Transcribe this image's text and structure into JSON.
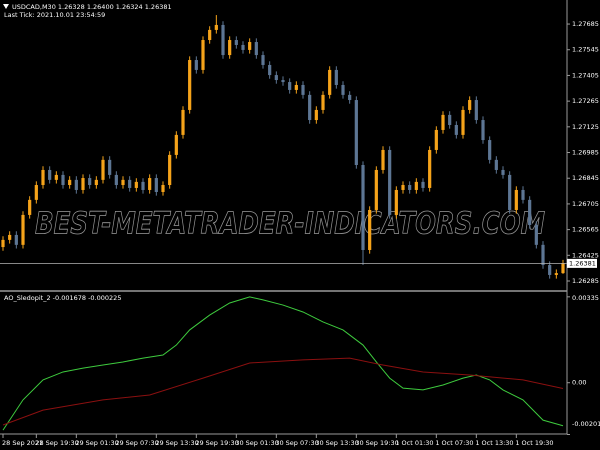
{
  "chart_data": [
    {
      "type": "candlestick",
      "title": "USDCAD,M30  1.26328 1.26400 1.26324 1.26381",
      "subtitle": "Last Tick: 2021.10.01 23:54:59",
      "watermark": "BEST-METATRADER-INDICATORS.COM",
      "up_color": "#f5a31a",
      "down_color": "#5d7694",
      "open": [
        1.2647,
        1.26509,
        1.26536,
        1.26482,
        1.26645,
        1.26727,
        1.26808,
        1.2689,
        1.26836,
        1.26863,
        1.26808,
        1.26836,
        1.26781,
        1.26846,
        1.26808,
        1.26836,
        1.26945,
        1.26863,
        1.26808,
        1.26836,
        1.26792,
        1.26825,
        1.26781,
        1.26846,
        1.2677,
        1.26808,
        1.26972,
        1.27081,
        1.27217,
        1.27489,
        1.27435,
        1.27598,
        1.27653,
        1.2768,
        1.27516,
        1.27598,
        1.27571,
        1.27544,
        1.27587,
        1.27516,
        1.27462,
        1.27407,
        1.2738,
        1.27369,
        1.27326,
        1.27353,
        1.27299,
        1.27162,
        1.27217,
        1.27299,
        1.27435,
        1.27353,
        1.27299,
        1.27271,
        1.26917,
        1.26454,
        1.26672,
        1.2689,
        1.26999,
        1.26645,
        1.26781,
        1.26808,
        1.26781,
        1.26825,
        1.26792,
        1.26999,
        1.27108,
        1.2719,
        1.27135,
        1.27081,
        1.27217,
        1.27271,
        1.27162,
        1.27053,
        1.26945,
        1.2689,
        1.26863,
        1.26672,
        1.26781,
        1.26727,
        1.2659,
        1.26482,
        1.26372,
        1.26318,
        1.26328
      ],
      "high": [
        1.26529,
        1.26556,
        1.26556,
        1.26665,
        1.26747,
        1.26828,
        1.2691,
        1.2691,
        1.26883,
        1.26883,
        1.26856,
        1.26856,
        1.26866,
        1.26866,
        1.26856,
        1.26965,
        1.26965,
        1.26883,
        1.26856,
        1.26856,
        1.26845,
        1.26845,
        1.26866,
        1.26866,
        1.26828,
        1.26992,
        1.27101,
        1.27237,
        1.27509,
        1.27509,
        1.27618,
        1.27673,
        1.27734,
        1.277,
        1.27618,
        1.27618,
        1.27591,
        1.27607,
        1.27607,
        1.27536,
        1.27482,
        1.27427,
        1.274,
        1.27389,
        1.27373,
        1.27373,
        1.27319,
        1.27237,
        1.27319,
        1.27455,
        1.27455,
        1.27373,
        1.27319,
        1.27291,
        1.26937,
        1.26692,
        1.2691,
        1.27019,
        1.27019,
        1.26801,
        1.26828,
        1.26828,
        1.26845,
        1.26845,
        1.27019,
        1.27128,
        1.2721,
        1.2721,
        1.27155,
        1.27237,
        1.27291,
        1.27291,
        1.27182,
        1.27073,
        1.26965,
        1.2691,
        1.26883,
        1.26801,
        1.26801,
        1.26747,
        1.2661,
        1.26502,
        1.26392,
        1.26348,
        1.264
      ],
      "low": [
        1.2645,
        1.26489,
        1.26462,
        1.26462,
        1.26625,
        1.26707,
        1.26788,
        1.26816,
        1.26816,
        1.26788,
        1.26788,
        1.26761,
        1.26761,
        1.26788,
        1.26788,
        1.26816,
        1.26843,
        1.26788,
        1.26788,
        1.26772,
        1.26772,
        1.26761,
        1.26761,
        1.2675,
        1.2675,
        1.26788,
        1.26952,
        1.27061,
        1.27197,
        1.27415,
        1.27415,
        1.27578,
        1.27633,
        1.27496,
        1.27496,
        1.27551,
        1.27524,
        1.27524,
        1.27496,
        1.27442,
        1.27387,
        1.2736,
        1.27349,
        1.27306,
        1.27306,
        1.27279,
        1.27142,
        1.27142,
        1.27197,
        1.27279,
        1.27333,
        1.27279,
        1.27251,
        1.26897,
        1.26372,
        1.26434,
        1.26652,
        1.2687,
        1.26625,
        1.26625,
        1.26761,
        1.26761,
        1.26761,
        1.26772,
        1.26772,
        1.26979,
        1.27088,
        1.27115,
        1.27061,
        1.27061,
        1.27197,
        1.27142,
        1.27033,
        1.26925,
        1.2687,
        1.26843,
        1.26652,
        1.26652,
        1.26707,
        1.2657,
        1.26462,
        1.26352,
        1.26298,
        1.26298,
        1.26324
      ],
      "close": [
        1.26509,
        1.26536,
        1.26482,
        1.26645,
        1.26727,
        1.26808,
        1.2689,
        1.26836,
        1.26863,
        1.26808,
        1.26836,
        1.26781,
        1.26846,
        1.26808,
        1.26836,
        1.26945,
        1.26863,
        1.26808,
        1.26836,
        1.26792,
        1.26825,
        1.26781,
        1.26846,
        1.2677,
        1.26808,
        1.26972,
        1.27081,
        1.27217,
        1.27489,
        1.27435,
        1.27598,
        1.27653,
        1.2768,
        1.27516,
        1.27598,
        1.27571,
        1.27544,
        1.27587,
        1.27516,
        1.27462,
        1.27407,
        1.2738,
        1.27369,
        1.27326,
        1.27353,
        1.27299,
        1.27162,
        1.27217,
        1.27299,
        1.27435,
        1.27353,
        1.27299,
        1.27271,
        1.26917,
        1.26454,
        1.26672,
        1.2689,
        1.26999,
        1.26645,
        1.26781,
        1.26808,
        1.26781,
        1.26825,
        1.26792,
        1.26999,
        1.27108,
        1.2719,
        1.27135,
        1.27081,
        1.27217,
        1.27271,
        1.27162,
        1.27053,
        1.26945,
        1.2689,
        1.26863,
        1.26672,
        1.26781,
        1.26727,
        1.2659,
        1.26482,
        1.26372,
        1.26318,
        1.26328,
        1.26381
      ],
      "xlim": [
        -0.45,
        84.45
      ],
      "xticks": [
        {
          "value": 0,
          "label": "28 Sep 2021"
        },
        {
          "value": 5,
          "label": "28 Sep 19:30"
        },
        {
          "value": 11,
          "label": "29 Sep 01:30"
        },
        {
          "value": 17,
          "label": "29 Sep 07:30"
        },
        {
          "value": 23,
          "label": "29 Sep 13:30"
        },
        {
          "value": 29,
          "label": "29 Sep 19:30"
        },
        {
          "value": 35,
          "label": "30 Sep 01:30"
        },
        {
          "value": 41,
          "label": "30 Sep 07:30"
        },
        {
          "value": 47,
          "label": "30 Sep 13:30"
        },
        {
          "value": 53,
          "label": "30 Sep 19:30"
        },
        {
          "value": 59,
          "label": "1 Oct 01:30"
        },
        {
          "value": 65,
          "label": "1 Oct 07:30"
        },
        {
          "value": 71,
          "label": "1 Oct 13:30"
        },
        {
          "value": 77,
          "label": "1 Oct 19:30"
        }
      ],
      "ylim": [
        1.26236,
        1.27816
      ],
      "yticks": [
        1.27685,
        1.27545,
        1.27405,
        1.27265,
        1.27125,
        1.26985,
        1.26845,
        1.26705,
        1.26565,
        1.26425,
        1.26285
      ],
      "current_price": 1.26381
    },
    {
      "type": "line",
      "title": "AO_Sledopit_2 -0.001678 -0.000225",
      "xlim": [
        -0.45,
        84.45
      ],
      "ylim": [
        -0.002,
        0.0035
      ],
      "yticks": [
        0.00335,
        {
          "value": 0,
          "label": "0.00"
        },
        -0.002019
      ],
      "series": [
        {
          "color": "#3ecb3e",
          "x": [
            0,
            3,
            6,
            9,
            12,
            15,
            18,
            21,
            24,
            26,
            28,
            31,
            34,
            37,
            39,
            42,
            45,
            48,
            51,
            54,
            56,
            58,
            60,
            63,
            66,
            69,
            71,
            73,
            75,
            78,
            81,
            84
          ],
          "values": [
            -0.00185,
            -0.00067,
            0.00011,
            0.00042,
            0.00057,
            0.00069,
            0.00081,
            0.00096,
            0.00108,
            0.00147,
            0.00206,
            0.00264,
            0.00311,
            0.00335,
            0.00323,
            0.00303,
            0.00276,
            0.00237,
            0.00206,
            0.00147,
            0.00081,
            0.00018,
            -0.00021,
            -0.00028,
            -9e-05,
            0.00018,
            0.0003,
            0.00011,
            -0.00028,
            -0.00067,
            -0.00146,
            -0.001678
          ]
        },
        {
          "color": "#8b1010",
          "x": [
            0,
            6,
            15,
            22,
            30,
            37,
            45,
            52,
            57,
            63,
            70,
            78,
            84
          ],
          "values": [
            -0.00165,
            -0.00107,
            -0.00067,
            -0.00048,
            0.00018,
            0.00077,
            0.00089,
            0.00096,
            0.00069,
            0.00042,
            0.0003,
            0.00011,
            -0.000225
          ]
        }
      ]
    }
  ]
}
